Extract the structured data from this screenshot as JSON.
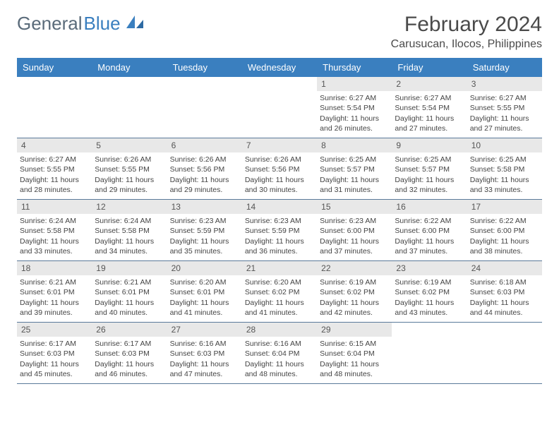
{
  "logo": {
    "general": "General",
    "blue": "Blue"
  },
  "title": "February 2024",
  "location": "Carusucan, Ilocos, Philippines",
  "colors": {
    "header_bg": "#3a7fbf",
    "header_text": "#ffffff",
    "daynum_bg": "#e8e8e8",
    "border": "#5a7a9a",
    "body_text": "#444444"
  },
  "day_names": [
    "Sunday",
    "Monday",
    "Tuesday",
    "Wednesday",
    "Thursday",
    "Friday",
    "Saturday"
  ],
  "weeks": [
    [
      null,
      null,
      null,
      null,
      {
        "n": "1",
        "sr": "6:27 AM",
        "ss": "5:54 PM",
        "dl": "11 hours and 26 minutes."
      },
      {
        "n": "2",
        "sr": "6:27 AM",
        "ss": "5:54 PM",
        "dl": "11 hours and 27 minutes."
      },
      {
        "n": "3",
        "sr": "6:27 AM",
        "ss": "5:55 PM",
        "dl": "11 hours and 27 minutes."
      }
    ],
    [
      {
        "n": "4",
        "sr": "6:27 AM",
        "ss": "5:55 PM",
        "dl": "11 hours and 28 minutes."
      },
      {
        "n": "5",
        "sr": "6:26 AM",
        "ss": "5:55 PM",
        "dl": "11 hours and 29 minutes."
      },
      {
        "n": "6",
        "sr": "6:26 AM",
        "ss": "5:56 PM",
        "dl": "11 hours and 29 minutes."
      },
      {
        "n": "7",
        "sr": "6:26 AM",
        "ss": "5:56 PM",
        "dl": "11 hours and 30 minutes."
      },
      {
        "n": "8",
        "sr": "6:25 AM",
        "ss": "5:57 PM",
        "dl": "11 hours and 31 minutes."
      },
      {
        "n": "9",
        "sr": "6:25 AM",
        "ss": "5:57 PM",
        "dl": "11 hours and 32 minutes."
      },
      {
        "n": "10",
        "sr": "6:25 AM",
        "ss": "5:58 PM",
        "dl": "11 hours and 33 minutes."
      }
    ],
    [
      {
        "n": "11",
        "sr": "6:24 AM",
        "ss": "5:58 PM",
        "dl": "11 hours and 33 minutes."
      },
      {
        "n": "12",
        "sr": "6:24 AM",
        "ss": "5:58 PM",
        "dl": "11 hours and 34 minutes."
      },
      {
        "n": "13",
        "sr": "6:23 AM",
        "ss": "5:59 PM",
        "dl": "11 hours and 35 minutes."
      },
      {
        "n": "14",
        "sr": "6:23 AM",
        "ss": "5:59 PM",
        "dl": "11 hours and 36 minutes."
      },
      {
        "n": "15",
        "sr": "6:23 AM",
        "ss": "6:00 PM",
        "dl": "11 hours and 37 minutes."
      },
      {
        "n": "16",
        "sr": "6:22 AM",
        "ss": "6:00 PM",
        "dl": "11 hours and 37 minutes."
      },
      {
        "n": "17",
        "sr": "6:22 AM",
        "ss": "6:00 PM",
        "dl": "11 hours and 38 minutes."
      }
    ],
    [
      {
        "n": "18",
        "sr": "6:21 AM",
        "ss": "6:01 PM",
        "dl": "11 hours and 39 minutes."
      },
      {
        "n": "19",
        "sr": "6:21 AM",
        "ss": "6:01 PM",
        "dl": "11 hours and 40 minutes."
      },
      {
        "n": "20",
        "sr": "6:20 AM",
        "ss": "6:01 PM",
        "dl": "11 hours and 41 minutes."
      },
      {
        "n": "21",
        "sr": "6:20 AM",
        "ss": "6:02 PM",
        "dl": "11 hours and 41 minutes."
      },
      {
        "n": "22",
        "sr": "6:19 AM",
        "ss": "6:02 PM",
        "dl": "11 hours and 42 minutes."
      },
      {
        "n": "23",
        "sr": "6:19 AM",
        "ss": "6:02 PM",
        "dl": "11 hours and 43 minutes."
      },
      {
        "n": "24",
        "sr": "6:18 AM",
        "ss": "6:03 PM",
        "dl": "11 hours and 44 minutes."
      }
    ],
    [
      {
        "n": "25",
        "sr": "6:17 AM",
        "ss": "6:03 PM",
        "dl": "11 hours and 45 minutes."
      },
      {
        "n": "26",
        "sr": "6:17 AM",
        "ss": "6:03 PM",
        "dl": "11 hours and 46 minutes."
      },
      {
        "n": "27",
        "sr": "6:16 AM",
        "ss": "6:03 PM",
        "dl": "11 hours and 47 minutes."
      },
      {
        "n": "28",
        "sr": "6:16 AM",
        "ss": "6:04 PM",
        "dl": "11 hours and 48 minutes."
      },
      {
        "n": "29",
        "sr": "6:15 AM",
        "ss": "6:04 PM",
        "dl": "11 hours and 48 minutes."
      },
      null,
      null
    ]
  ],
  "labels": {
    "sunrise": "Sunrise:",
    "sunset": "Sunset:",
    "daylight": "Daylight:"
  }
}
